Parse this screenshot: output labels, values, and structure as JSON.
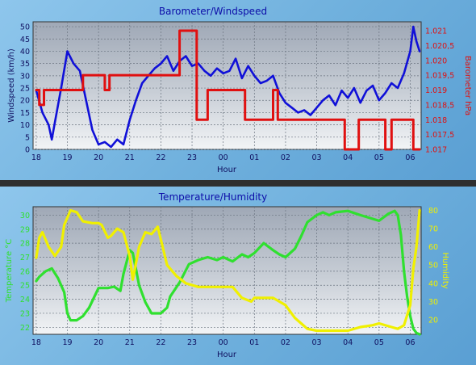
{
  "colors": {
    "windspeed": "#1010d8",
    "barometer": "#e01010",
    "temperature": "#2fe02f",
    "humidity": "#f0f000",
    "title": "#0c0ca8",
    "axis_dark": "#101060"
  },
  "chart_data": [
    {
      "type": "line",
      "title": "Barometer/Windspeed",
      "xlabel": "Hour",
      "x_ticks": [
        "18",
        "19",
        "20",
        "21",
        "22",
        "23",
        "00",
        "01",
        "02",
        "03",
        "04",
        "05",
        "06"
      ],
      "x_range_hours": [
        17.9,
        30.35
      ],
      "ylabel_left": "Windspeed (km/h)",
      "ylabel_right": "Barometer hPa",
      "y_left_ticks": [
        "0",
        "5",
        "10",
        "15",
        "20",
        "25",
        "30",
        "35",
        "40",
        "45",
        "50"
      ],
      "y_left_range": [
        0,
        52
      ],
      "y_right_ticks": [
        "1.017",
        "1.017,5",
        "1.018",
        "1.018,5",
        "1.019",
        "1.019,5",
        "1.020",
        "1.020,5",
        "1.021"
      ],
      "y_right_range": [
        1.017,
        1.0213
      ],
      "grid": true,
      "series": [
        {
          "name": "Windspeed",
          "axis": "left",
          "x": [
            18.0,
            18.2,
            18.4,
            18.5,
            18.6,
            18.8,
            19.0,
            19.2,
            19.4,
            19.6,
            19.8,
            20.0,
            20.2,
            20.4,
            20.6,
            20.8,
            21.0,
            21.2,
            21.4,
            21.6,
            21.8,
            22.0,
            22.2,
            22.4,
            22.6,
            22.8,
            23.0,
            23.2,
            23.4,
            23.6,
            23.8,
            24.0,
            24.2,
            24.4,
            24.6,
            24.8,
            25.0,
            25.2,
            25.4,
            25.6,
            25.8,
            26.0,
            26.2,
            26.4,
            26.6,
            26.8,
            27.0,
            27.2,
            27.4,
            27.6,
            27.8,
            28.0,
            28.2,
            28.4,
            28.6,
            28.8,
            29.0,
            29.2,
            29.4,
            29.6,
            29.8,
            30.0,
            30.1,
            30.2,
            30.3
          ],
          "values": [
            24,
            15,
            10,
            4,
            11,
            25,
            40,
            35,
            32,
            20,
            8,
            2,
            3,
            1,
            4,
            2,
            12,
            20,
            27,
            30,
            33,
            35,
            38,
            32,
            36,
            38,
            34,
            35,
            32,
            30,
            33,
            31,
            32,
            37,
            29,
            34,
            30,
            27,
            28,
            30,
            23,
            19,
            17,
            15,
            16,
            14,
            17,
            20,
            22,
            18,
            24,
            21,
            25,
            19,
            24,
            26,
            20,
            23,
            27,
            25,
            31,
            40,
            50,
            44,
            40
          ]
        },
        {
          "name": "Barometer",
          "axis": "right",
          "x": [
            18.0,
            18.1,
            18.1,
            18.25,
            18.25,
            19.3,
            19.3,
            19.5,
            19.5,
            19.9,
            19.9,
            20.2,
            20.2,
            20.35,
            20.35,
            22.6,
            22.6,
            22.95,
            22.95,
            23.15,
            23.15,
            23.5,
            23.5,
            24.7,
            24.7,
            24.9,
            24.9,
            25.6,
            25.6,
            25.75,
            25.75,
            27.9,
            27.9,
            28.35,
            28.35,
            29.2,
            29.2,
            29.4,
            29.4,
            29.8,
            29.8,
            30.1,
            30.1,
            30.3
          ],
          "values": [
            1.019,
            1.019,
            1.0185,
            1.0185,
            1.019,
            1.019,
            1.019,
            1.019,
            1.0195,
            1.0195,
            1.0195,
            1.0195,
            1.019,
            1.019,
            1.0195,
            1.0195,
            1.021,
            1.021,
            1.021,
            1.021,
            1.018,
            1.018,
            1.019,
            1.019,
            1.018,
            1.018,
            1.018,
            1.018,
            1.019,
            1.019,
            1.018,
            1.018,
            1.017,
            1.017,
            1.018,
            1.018,
            1.017,
            1.017,
            1.018,
            1.018,
            1.018,
            1.018,
            1.017,
            1.017
          ]
        }
      ]
    },
    {
      "type": "line",
      "title": "Temperature/Humidity",
      "xlabel": "Hour",
      "x_ticks": [
        "18",
        "19",
        "20",
        "21",
        "22",
        "23",
        "00",
        "01",
        "02",
        "03",
        "04",
        "05",
        "06"
      ],
      "x_range_hours": [
        17.9,
        30.35
      ],
      "ylabel_left": "Temperature °C",
      "ylabel_right": "Humidity",
      "y_left_ticks": [
        "22",
        "23",
        "24",
        "25",
        "26",
        "27",
        "28",
        "29",
        "30"
      ],
      "y_left_range": [
        21.5,
        30.6
      ],
      "y_right_ticks": [
        "20",
        "30",
        "40",
        "50",
        "60",
        "70",
        "80"
      ],
      "y_right_range": [
        12,
        82
      ],
      "grid": true,
      "series": [
        {
          "name": "Temperature",
          "axis": "left",
          "x": [
            18.0,
            18.1,
            18.3,
            18.5,
            18.7,
            18.9,
            19.0,
            19.1,
            19.3,
            19.5,
            19.7,
            20.0,
            20.3,
            20.5,
            20.7,
            20.8,
            21.0,
            21.1,
            21.3,
            21.5,
            21.7,
            22.0,
            22.2,
            22.3,
            22.6,
            22.9,
            23.2,
            23.5,
            23.8,
            24.0,
            24.3,
            24.6,
            24.8,
            25.0,
            25.3,
            25.6,
            25.8,
            26.0,
            26.3,
            26.5,
            26.7,
            27.0,
            27.2,
            27.4,
            27.6,
            28.0,
            28.4,
            28.7,
            29.0,
            29.3,
            29.5,
            29.6,
            29.7,
            29.8,
            29.9,
            30.0,
            30.1,
            30.2,
            30.3
          ],
          "values": [
            25.3,
            25.6,
            26.0,
            26.2,
            25.5,
            24.5,
            23.0,
            22.5,
            22.5,
            22.8,
            23.4,
            24.8,
            24.8,
            24.9,
            24.6,
            25.8,
            27.5,
            27.3,
            25.0,
            23.8,
            23.0,
            23.0,
            23.4,
            24.2,
            25.2,
            26.5,
            26.8,
            27.0,
            26.8,
            27.0,
            26.7,
            27.2,
            27.0,
            27.3,
            28.0,
            27.5,
            27.2,
            27.0,
            27.6,
            28.5,
            29.5,
            30.0,
            30.2,
            30.0,
            30.2,
            30.3,
            30.0,
            29.8,
            29.6,
            30.1,
            30.3,
            30.0,
            28.6,
            26.0,
            24.2,
            22.8,
            21.9,
            21.6,
            21.5
          ]
        },
        {
          "name": "Humidity",
          "axis": "right",
          "x": [
            18.0,
            18.1,
            18.2,
            18.4,
            18.6,
            18.8,
            18.9,
            19.1,
            19.3,
            19.5,
            19.8,
            20.0,
            20.1,
            20.3,
            20.4,
            20.6,
            20.8,
            21.0,
            21.1,
            21.3,
            21.5,
            21.7,
            21.9,
            22.2,
            22.5,
            22.8,
            23.2,
            23.7,
            24.0,
            24.3,
            24.6,
            24.9,
            25.0,
            25.3,
            25.6,
            26.0,
            26.3,
            26.5,
            26.7,
            27.0,
            27.5,
            28.0,
            28.4,
            28.8,
            29.0,
            29.4,
            29.6,
            29.8,
            30.0,
            30.1,
            30.2,
            30.3
          ],
          "values": [
            54,
            65,
            68,
            60,
            55,
            60,
            72,
            80,
            79,
            74,
            73,
            73,
            72,
            65,
            66,
            70,
            68,
            55,
            42,
            60,
            68,
            67,
            71,
            50,
            44,
            40,
            38,
            38,
            38,
            38,
            32,
            30,
            32,
            32,
            32,
            28,
            21,
            18,
            15,
            14,
            14,
            14,
            16,
            17,
            18,
            16,
            15,
            17,
            28,
            48,
            60,
            80
          ]
        }
      ]
    }
  ]
}
